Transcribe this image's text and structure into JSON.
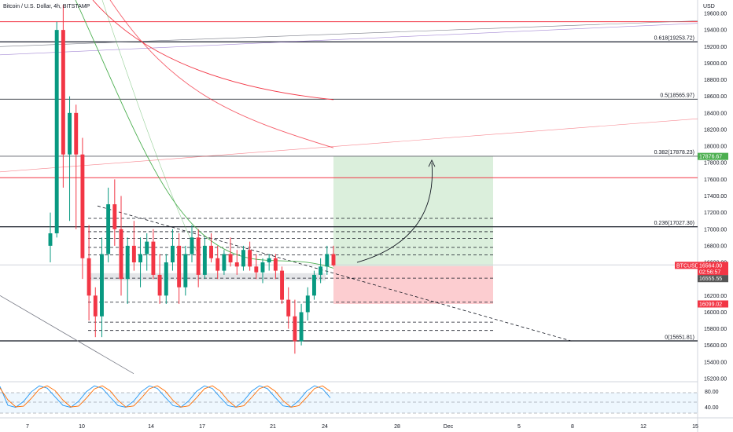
{
  "header": {
    "title": "Bitcoin / U.S. Dollar, 4h, BITSTAMP"
  },
  "chart_data": {
    "type": "candlestick",
    "symbol": "BTCUSD",
    "timeframe": "4h",
    "exchange": "BITSTAMP",
    "currency": "USD",
    "price_axis": {
      "range": [
        15200,
        19700
      ],
      "ticks": [
        "19600.00",
        "19400.00",
        "19200.00",
        "19000.00",
        "18800.00",
        "18600.00",
        "18400.00",
        "18200.00",
        "18000.00",
        "17800.00",
        "17600.00",
        "17400.00",
        "17200.00",
        "17000.00",
        "16800.00",
        "16600.00",
        "16400.00",
        "16200.00",
        "16000.00",
        "15800.00",
        "15600.00",
        "15400.00",
        "15200.00"
      ]
    },
    "time_axis": [
      "7",
      "10",
      "14",
      "17",
      "21",
      "24",
      "28",
      "Dec",
      "5",
      "8",
      "12",
      "15"
    ],
    "fib_levels": [
      {
        "label": "0.618(19253.72)",
        "price": 19253.72
      },
      {
        "label": "0.5(18565.97)",
        "price": 18565.97
      },
      {
        "label": "0.382(17878.23)",
        "price": 17878.23
      },
      {
        "label": "0.236(17027.30)",
        "price": 17027.3
      },
      {
        "label": "0(15651.81)",
        "price": 15651.81
      }
    ],
    "price_tags": [
      {
        "label": "17876.67",
        "price": 17876.67,
        "color": "#4caf50"
      },
      {
        "label": "BTCUSD",
        "price": 16564.0,
        "color": "#f23645"
      },
      {
        "label": "16564.00",
        "price": 16564.0,
        "color": "#f23645"
      },
      {
        "label": "02:56:57",
        "price": 16564.0,
        "color": "#f23645"
      },
      {
        "label": "16555.55",
        "price": 16555.55,
        "color": "#555555"
      },
      {
        "label": "16099.02",
        "price": 16099.02,
        "color": "#f23645"
      }
    ],
    "position": {
      "entry": 16555.55,
      "target": 17876.67,
      "stop": 16099.02
    },
    "horizontal_levels": [
      19500,
      19260,
      17620,
      17030,
      16570,
      15655
    ],
    "dashed_levels": [
      17130,
      16970,
      16890,
      16780,
      16690,
      16410,
      16120,
      15880,
      15780
    ],
    "candles": [
      [
        16800,
        17200,
        16600,
        16950
      ],
      [
        16950,
        19500,
        16900,
        19400
      ],
      [
        19400,
        19700,
        17500,
        17900
      ],
      [
        17900,
        18600,
        17100,
        18400
      ],
      [
        18400,
        18500,
        17000,
        17900
      ],
      [
        17900,
        18100,
        16400,
        16650
      ],
      [
        16650,
        17050,
        15900,
        16200
      ],
      [
        16200,
        16300,
        15700,
        15950
      ],
      [
        15950,
        16900,
        15700,
        16700
      ],
      [
        16700,
        17500,
        16600,
        17300
      ],
      [
        17300,
        17600,
        16800,
        17000
      ],
      [
        17000,
        17400,
        16200,
        16400
      ],
      [
        16400,
        16900,
        16100,
        16800
      ],
      [
        16800,
        17100,
        16500,
        16600
      ],
      [
        16600,
        16900,
        16300,
        16700
      ],
      [
        16700,
        16950,
        16500,
        16850
      ],
      [
        16850,
        17000,
        16400,
        16450
      ],
      [
        16450,
        16700,
        16100,
        16200
      ],
      [
        16200,
        16700,
        16100,
        16600
      ],
      [
        16600,
        17000,
        16500,
        16800
      ],
      [
        16800,
        16950,
        16100,
        16300
      ],
      [
        16300,
        16800,
        16200,
        16700
      ],
      [
        16700,
        17050,
        16600,
        16900
      ],
      [
        16900,
        17000,
        16300,
        16450
      ],
      [
        16450,
        16900,
        16400,
        16800
      ],
      [
        16800,
        16950,
        16600,
        16650
      ],
      [
        16650,
        16800,
        16400,
        16500
      ],
      [
        16500,
        16750,
        16450,
        16700
      ],
      [
        16700,
        16900,
        16550,
        16600
      ],
      [
        16600,
        16750,
        16450,
        16550
      ],
      [
        16550,
        16800,
        16500,
        16750
      ],
      [
        16750,
        16850,
        16500,
        16550
      ],
      [
        16550,
        16700,
        16400,
        16480
      ],
      [
        16480,
        16650,
        16350,
        16600
      ],
      [
        16600,
        16700,
        16500,
        16650
      ],
      [
        16650,
        16700,
        16400,
        16500
      ],
      [
        16500,
        16550,
        16100,
        16150
      ],
      [
        16150,
        16300,
        15800,
        15950
      ],
      [
        15950,
        16150,
        15500,
        15650
      ],
      [
        15650,
        16100,
        15600,
        16000
      ],
      [
        16000,
        16300,
        15900,
        16200
      ],
      [
        16200,
        16500,
        16150,
        16450
      ],
      [
        16450,
        16650,
        16350,
        16550
      ],
      [
        16550,
        16800,
        16450,
        16700
      ],
      [
        16700,
        16800,
        16550,
        16564
      ]
    ],
    "oscillator": {
      "levels": [
        "80.00",
        "40.00"
      ]
    }
  }
}
